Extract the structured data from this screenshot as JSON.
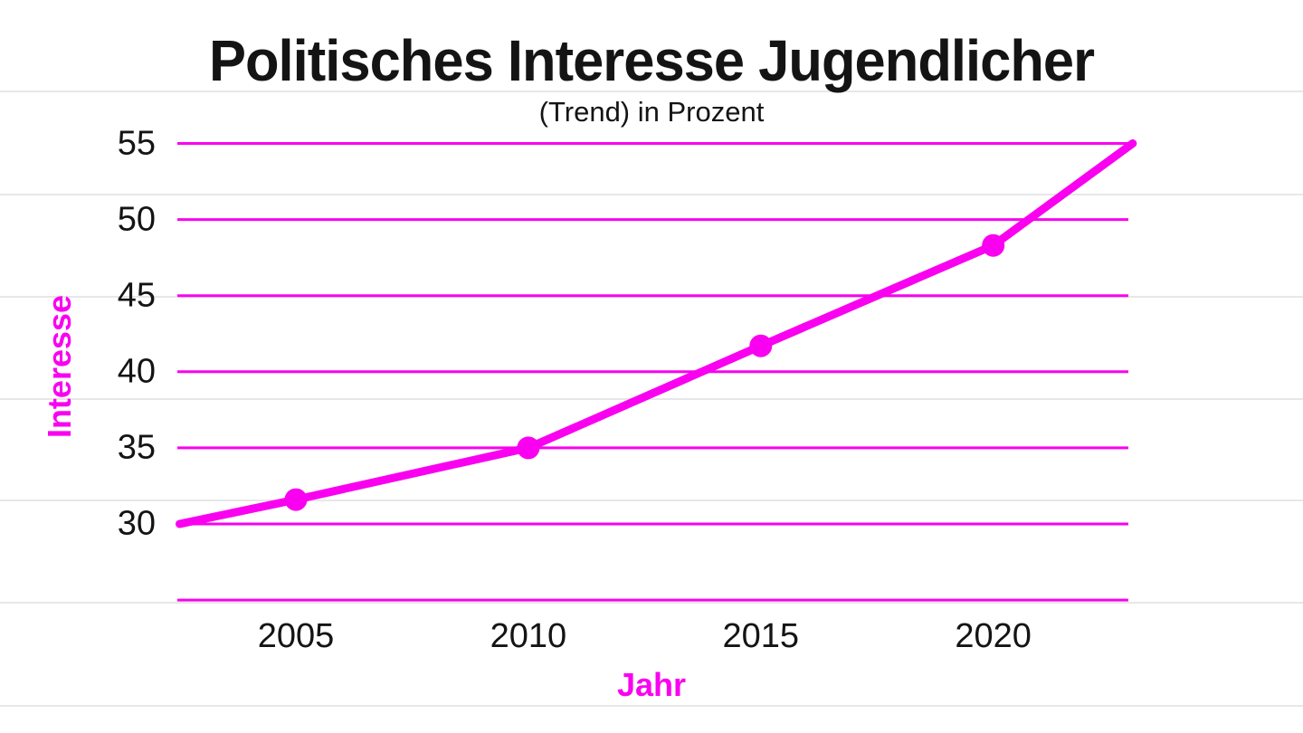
{
  "chart_data": {
    "type": "line",
    "title": "Politisches Interesse Jugendlicher",
    "subtitle": "(Trend) in Prozent",
    "xlabel": "Jahr",
    "ylabel": "Interesse",
    "x_ticks": [
      2005,
      2010,
      2015,
      2020
    ],
    "y_ticks_labeled": [
      55,
      50,
      45,
      40,
      35,
      30
    ],
    "y_gridlines": [
      55,
      50,
      45,
      40,
      35,
      30,
      25
    ],
    "xlim": [
      2002.5,
      2023
    ],
    "ylim": [
      25,
      57.5
    ],
    "grid": "horizontal-magenta",
    "legend": "none",
    "series": [
      {
        "name": "Interesse (Trend)",
        "points": [
          {
            "year": 2005,
            "value": 31.6
          },
          {
            "year": 2010,
            "value": 35
          },
          {
            "year": 2015,
            "value": 41.7
          },
          {
            "year": 2020,
            "value": 48.3
          }
        ],
        "trend_start": {
          "year": 2002.5,
          "value": 30
        },
        "trend_end": {
          "year": 2023,
          "value": 55
        }
      }
    ],
    "colors": {
      "line": "#fa00f0",
      "grid": "#fa00f0",
      "background_rule": "#e7e7e7",
      "text": "#141414",
      "background": "#ffffff"
    }
  }
}
